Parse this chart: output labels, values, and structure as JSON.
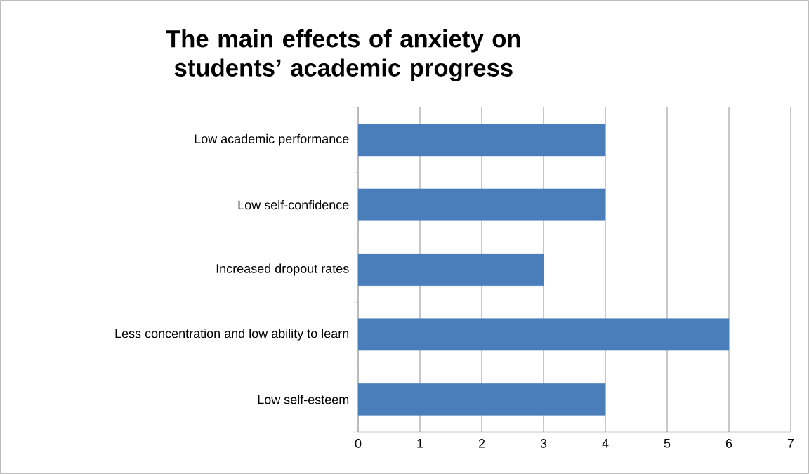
{
  "chart_data": {
    "type": "bar",
    "orientation": "horizontal",
    "title": "The main effects of anxiety on students’ academic progress",
    "categories": [
      "Low academic performance",
      "Low self-confidence",
      "Increased dropout rates",
      "Less concentration and low ability to learn",
      "Low self-esteem"
    ],
    "values": [
      4,
      4,
      3,
      6,
      4
    ],
    "color": "#4a7ebb",
    "xlim": [
      0,
      7
    ],
    "xticks": [
      0,
      1,
      2,
      3,
      4,
      5,
      6,
      7
    ],
    "grid": "x"
  }
}
